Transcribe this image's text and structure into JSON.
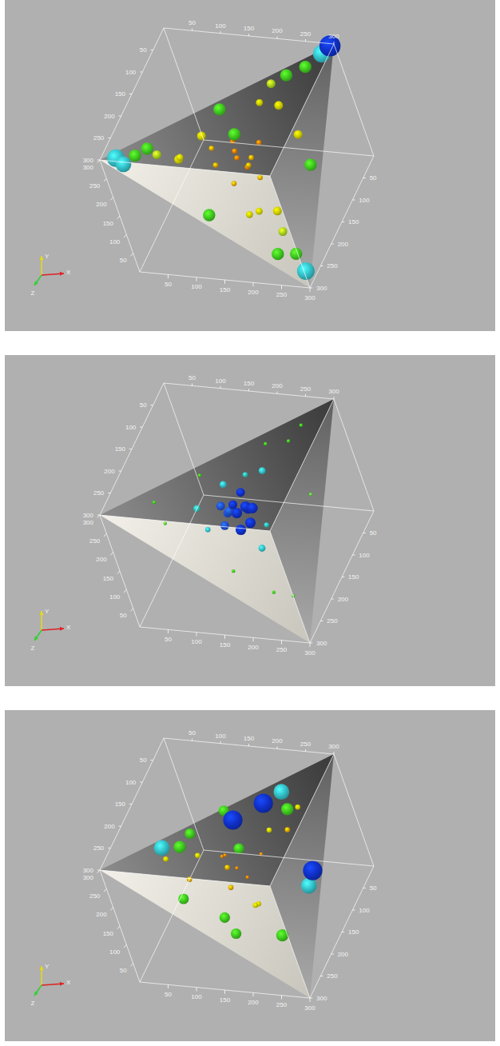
{
  "chart_data": [
    {
      "type": "scatter3d",
      "xlabel": "X",
      "ylabel": "Y",
      "zlabel": "Z",
      "xlim": [
        0,
        300
      ],
      "ylim": [
        0,
        300
      ],
      "zlim": [
        0,
        300
      ],
      "xticks": [
        50,
        100,
        150,
        200,
        250,
        300
      ],
      "yticks": [
        50,
        100,
        150,
        200,
        250,
        300
      ],
      "zticks": [
        50,
        100,
        150,
        200,
        250,
        300
      ],
      "series": [
        {
          "x": [
            150,
            140,
            170,
            120,
            180,
            160,
            130,
            190,
            110,
            200,
            150,
            145,
            220,
            90,
            230,
            200,
            60,
            240,
            180,
            80,
            210,
            120,
            250,
            170,
            260,
            240,
            40,
            60,
            270,
            250,
            150,
            280,
            150,
            100,
            285,
            20,
            30,
            290,
            295
          ],
          "y": [
            150,
            170,
            140,
            150,
            160,
            120,
            130,
            180,
            170,
            140,
            190,
            110,
            230,
            220,
            90,
            250,
            240,
            60,
            220,
            200,
            110,
            240,
            180,
            60,
            280,
            290,
            270,
            280,
            40,
            60,
            280,
            150,
            150,
            100,
            295,
            290,
            275,
            20,
            300
          ],
          "z": [
            150,
            130,
            160,
            170,
            120,
            140,
            120,
            170,
            150,
            180,
            140,
            175,
            90,
            220,
            210,
            60,
            230,
            230,
            80,
            200,
            230,
            180,
            110,
            200,
            40,
            70,
            260,
            250,
            260,
            280,
            150,
            150,
            280,
            60,
            20,
            285,
            285,
            280,
            5
          ],
          "sizes": [
            3,
            3,
            3,
            3,
            3,
            3,
            3,
            3,
            3,
            3,
            3,
            3,
            5,
            5,
            5,
            5,
            5,
            5,
            4,
            4,
            4,
            5,
            5,
            4,
            7,
            7,
            7,
            7,
            7,
            7,
            7,
            7,
            7,
            7,
            10,
            10,
            9,
            10,
            12
          ],
          "colors": [
            "#e07b00",
            "#e07b00",
            "#e07b00",
            "#d9a400",
            "#e07b00",
            "#d9a400",
            "#e07b00",
            "#d9a400",
            "#d9a400",
            "#d9a400",
            "#e07b00",
            "#d9a400",
            "#cccc00",
            "#cccc00",
            "#cccc00",
            "#a6d21c",
            "#a6d21c",
            "#a6d21c",
            "#cccc00",
            "#cccc00",
            "#cccc00",
            "#cccc00",
            "#cccc00",
            "#cccc00",
            "#3ec81e",
            "#3ec81e",
            "#3ec81e",
            "#3ec81e",
            "#3ec81e",
            "#3ec81e",
            "#3ec81e",
            "#3ec81e",
            "#3ec81e",
            "#3ec81e",
            "#33c0c8",
            "#33c0c8",
            "#33c0c8",
            "#33c0c8",
            "#1030c8"
          ]
        }
      ]
    },
    {
      "type": "scatter3d",
      "xlabel": "X",
      "ylabel": "Y",
      "zlabel": "Z",
      "xlim": [
        0,
        300
      ],
      "ylim": [
        0,
        300
      ],
      "zlim": [
        0,
        300
      ],
      "xticks": [
        50,
        100,
        150,
        200,
        250,
        300
      ],
      "yticks": [
        50,
        100,
        150,
        200,
        250,
        300
      ],
      "zticks": [
        50,
        100,
        150,
        200,
        250,
        300
      ],
      "series": [
        {
          "x": [
            250,
            60,
            260,
            200,
            80,
            240,
            120,
            270,
            160,
            210,
            190,
            100,
            200,
            170,
            120,
            210,
            130,
            150,
            160,
            140,
            170,
            130,
            150,
            160,
            140,
            175,
            125,
            155,
            165
          ],
          "y": [
            270,
            260,
            50,
            260,
            230,
            80,
            270,
            170,
            90,
            210,
            210,
            190,
            110,
            220,
            160,
            150,
            200,
            150,
            140,
            160,
            170,
            140,
            170,
            130,
            150,
            155,
            165,
            185,
            120
          ],
          "z": [
            40,
            230,
            240,
            80,
            250,
            260,
            170,
            110,
            230,
            30,
            100,
            180,
            190,
            120,
            200,
            170,
            130,
            150,
            130,
            160,
            150,
            140,
            120,
            170,
            180,
            140,
            150,
            160,
            145
          ],
          "sizes": [
            2,
            2,
            2,
            2,
            2,
            2,
            2,
            2,
            2,
            2,
            4,
            4,
            4,
            3,
            3,
            3,
            4,
            6,
            6,
            5,
            6,
            5,
            5,
            6,
            5,
            6,
            5,
            5,
            6
          ],
          "colors": [
            "#3ec81e",
            "#3ec81e",
            "#5cc83a",
            "#3ec81e",
            "#5cc83a",
            "#3ec81e",
            "#3ec81e",
            "#5cc83a",
            "#3ec81e",
            "#3ec81e",
            "#33c0c8",
            "#2fb8b0",
            "#33c0c8",
            "#2fb8b0",
            "#33c0c8",
            "#2fb8b0",
            "#33c0c8",
            "#1030c8",
            "#1030c8",
            "#1f4fd0",
            "#1030c8",
            "#1f4fd0",
            "#1030c8",
            "#1030c8",
            "#1f4fd0",
            "#1030c8",
            "#1f4fd0",
            "#1030c8",
            "#1030c8"
          ]
        }
      ]
    },
    {
      "type": "scatter3d",
      "xlabel": "X",
      "ylabel": "Y",
      "zlabel": "Z",
      "xlim": [
        0,
        300
      ],
      "ylim": [
        0,
        300
      ],
      "zlim": [
        0,
        300
      ],
      "xticks": [
        50,
        100,
        150,
        200,
        250,
        300
      ],
      "yticks": [
        50,
        100,
        150,
        200,
        250,
        300
      ],
      "zticks": [
        50,
        100,
        150,
        200,
        250,
        300
      ],
      "series": [
        {
          "x": [
            150,
            130,
            170,
            110,
            190,
            140,
            200,
            100,
            200,
            160,
            220,
            90,
            180,
            240,
            60,
            240,
            100,
            250,
            180,
            170,
            150,
            80,
            80,
            160,
            60,
            270,
            200,
            200,
            120,
            280
          ],
          "y": [
            150,
            170,
            140,
            140,
            170,
            120,
            200,
            200,
            120,
            200,
            180,
            170,
            90,
            220,
            220,
            250,
            270,
            90,
            230,
            150,
            280,
            220,
            140,
            70,
            250,
            120,
            220,
            260,
            180,
            150
          ],
          "z": [
            150,
            140,
            160,
            120,
            130,
            170,
            100,
            170,
            200,
            190,
            80,
            200,
            180,
            60,
            200,
            90,
            210,
            240,
            170,
            260,
            130,
            140,
            220,
            230,
            200,
            150,
            30,
            90,
            70,
            140
          ],
          "sizes": [
            2,
            2,
            2,
            2,
            2,
            3,
            3,
            3,
            3,
            3,
            3,
            3,
            3,
            3,
            3,
            7,
            7,
            7,
            6,
            6,
            6,
            6,
            6,
            6,
            9,
            9,
            9,
            11,
            11,
            11
          ],
          "colors": [
            "#e07b00",
            "#e07b00",
            "#e07b00",
            "#e07b00",
            "#e07b00",
            "#d9a400",
            "#cccc00",
            "#cccc00",
            "#cccc00",
            "#d9a400",
            "#d9a400",
            "#d9a400",
            "#cccc00",
            "#cccc00",
            "#cccc00",
            "#3ec81e",
            "#3ec81e",
            "#3ec81e",
            "#3ec81e",
            "#3ec81e",
            "#3ec81e",
            "#3ec81e",
            "#3ec81e",
            "#3ec81e",
            "#33c0c8",
            "#33c0c8",
            "#33c0c8",
            "#1030c8",
            "#1030c8",
            "#1030c8"
          ]
        }
      ]
    }
  ]
}
